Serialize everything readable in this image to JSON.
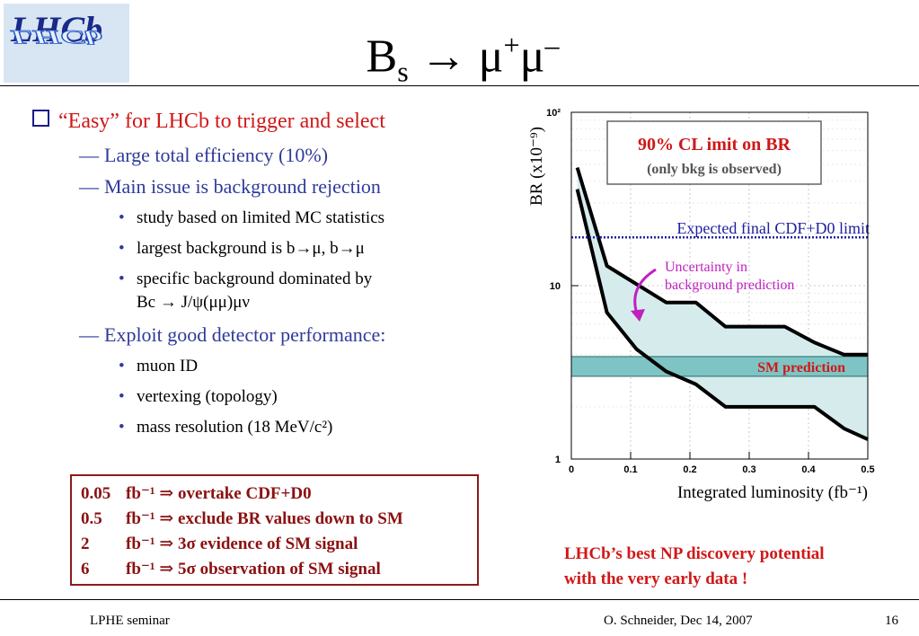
{
  "logo": {
    "text_top": "LHCb",
    "text_bottom": "LHCb"
  },
  "title": {
    "main": "B",
    "sub": "s",
    "arrow": "→",
    "mu1": "μ",
    "sup1": "+",
    "mu2": "μ",
    "sup2": "–"
  },
  "main_bullet": "“Easy” for LHCb to trigger and select",
  "items": [
    {
      "level": 2,
      "text": "Large total efficiency (10%)"
    },
    {
      "level": 2,
      "text": "Main issue is background rejection"
    },
    {
      "level": 3,
      "text": "study based on limited MC statistics"
    },
    {
      "level": 3,
      "text": "largest background is b→μ, b→μ"
    },
    {
      "level": 3,
      "text": "specific background dominated by"
    },
    {
      "level": 3,
      "text": "Bc → J/ψ(μμ)μν"
    },
    {
      "level": 2,
      "text": "Exploit good detector performance:"
    },
    {
      "level": 3,
      "text": "muon ID"
    },
    {
      "level": 3,
      "text": "vertexing (topology)"
    },
    {
      "level": 3,
      "text": "mass resolution (18 MeV/c²)"
    }
  ],
  "results": [
    {
      "lumi": "0.05",
      "unit": "fb⁻¹",
      "text": "⇒ overtake CDF+D0"
    },
    {
      "lumi": "0.5",
      "unit": "fb⁻¹",
      "text": "⇒ exclude BR values down to SM"
    },
    {
      "lumi": "2",
      "unit": "fb⁻¹",
      "text": "⇒   3σ evidence of SM signal"
    },
    {
      "lumi": "6",
      "unit": "fb⁻¹",
      "text": "⇒   5σ observation of SM signal"
    }
  ],
  "conclusion": [
    "LHCb’s best NP discovery potential",
    "with the very early data !"
  ],
  "footer": {
    "left": "LPHE seminar",
    "center": "O. Schneider, Dec 14, 2007",
    "right": "16"
  },
  "chart_data": {
    "type": "line",
    "xlabel": "Integrated luminosity (fb⁻¹)",
    "ylabel": "BR (x10⁻⁹)",
    "xlim": [
      0,
      0.5
    ],
    "ylim": [
      1,
      100
    ],
    "yscale": "log",
    "x_ticks": [
      "0",
      "0.1",
      "0.2",
      "0.3",
      "0.4",
      "0.5"
    ],
    "y_ticks": [
      "1",
      "10",
      "10²"
    ],
    "series": [
      {
        "values": [
          [
            0.01,
            48
          ],
          [
            0.06,
            13
          ],
          [
            0.16,
            8
          ],
          [
            0.21,
            8
          ],
          [
            0.26,
            5.8
          ],
          [
            0.36,
            5.8
          ],
          [
            0.41,
            4.7
          ],
          [
            0.46,
            4
          ],
          [
            0.5,
            4
          ]
        ]
      },
      {
        "values": [
          [
            0.01,
            36
          ],
          [
            0.06,
            7
          ],
          [
            0.11,
            4.3
          ],
          [
            0.16,
            3.2
          ],
          [
            0.21,
            2.7
          ],
          [
            0.26,
            2
          ],
          [
            0.41,
            2
          ],
          [
            0.46,
            1.5
          ],
          [
            0.5,
            1.3
          ]
        ]
      }
    ],
    "expected_limit": {
      "value": 19,
      "label": "Expected final CDF+D0 limit"
    },
    "sm_band": {
      "low": 3,
      "high": 3.9,
      "label": "SM prediction"
    },
    "annotations": {
      "cl_box_title": "90% CL imit on BR",
      "cl_box_sub": "(only bkg is observed)",
      "uncertainty": [
        "Uncertainty in",
        "background prediction"
      ]
    },
    "colors": {
      "band_fill": "#d6ecec",
      "sm_band": "#7fc4c4",
      "limit_line": "#2020a0",
      "annotation": "#c020c0",
      "cl_text": "#d01818"
    }
  }
}
